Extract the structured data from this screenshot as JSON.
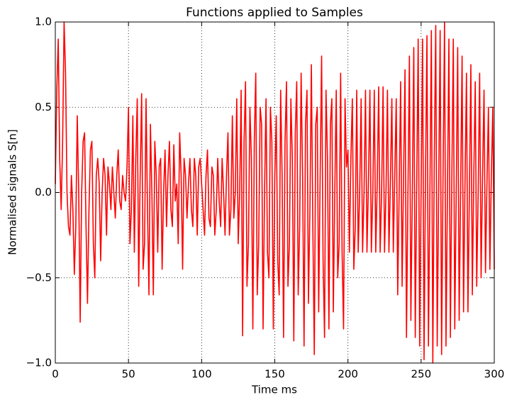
{
  "chart_data": {
    "type": "line",
    "title": "Functions applied to Samples",
    "xlabel": "Time ms",
    "ylabel": "Normalised signals S[n]",
    "x": [
      0,
      1,
      2,
      3,
      4,
      5,
      6,
      7,
      8,
      9,
      10,
      11,
      12,
      13,
      14,
      15,
      16,
      17,
      18,
      19,
      20,
      21,
      22,
      23,
      24,
      25,
      26,
      27,
      28,
      29,
      30,
      31,
      32,
      33,
      34,
      35,
      36,
      37,
      38,
      39,
      40,
      41,
      42,
      43,
      44,
      45,
      46,
      47,
      48,
      49,
      50,
      51,
      52,
      53,
      54,
      55,
      56,
      57,
      58,
      59,
      60,
      61,
      62,
      63,
      64,
      65,
      66,
      67,
      68,
      69,
      70,
      71,
      72,
      73,
      74,
      75,
      76,
      77,
      78,
      79,
      80,
      81,
      82,
      83,
      84,
      85,
      86,
      87,
      88,
      89,
      90,
      91,
      92,
      93,
      94,
      95,
      96,
      97,
      98,
      99,
      100,
      101,
      102,
      103,
      104,
      105,
      106,
      107,
      108,
      109,
      110,
      111,
      112,
      113,
      114,
      115,
      116,
      117,
      118,
      119,
      120,
      121,
      122,
      123,
      124,
      125,
      126,
      127,
      128,
      129,
      130,
      131,
      132,
      133,
      134,
      135,
      136,
      137,
      138,
      139,
      140,
      141,
      142,
      143,
      144,
      145,
      146,
      147,
      148,
      149,
      150,
      151,
      152,
      153,
      154,
      155,
      156,
      157,
      158,
      159,
      160,
      161,
      162,
      163,
      164,
      165,
      166,
      167,
      168,
      169,
      170,
      171,
      172,
      173,
      174,
      175,
      176,
      177,
      178,
      179,
      180,
      181,
      182,
      183,
      184,
      185,
      186,
      187,
      188,
      189,
      190,
      191,
      192,
      193,
      194,
      195,
      196,
      197,
      198,
      199,
      200,
      201,
      202,
      203,
      204,
      205,
      206,
      207,
      208,
      209,
      210,
      211,
      212,
      213,
      214,
      215,
      216,
      217,
      218,
      219,
      220,
      221,
      222,
      223,
      224,
      225,
      226,
      227,
      228,
      229,
      230,
      231,
      232,
      233,
      234,
      235,
      236,
      237,
      238,
      239,
      240,
      241,
      242,
      243,
      244,
      245,
      246,
      247,
      248,
      249,
      250,
      251,
      252,
      253,
      254,
      255,
      256,
      257,
      258,
      259,
      260,
      261,
      262,
      263,
      264,
      265,
      266,
      267,
      268,
      269,
      270,
      271,
      272,
      273,
      274,
      275,
      276,
      277,
      278,
      279,
      280,
      281,
      282,
      283,
      284,
      285,
      286,
      287,
      288,
      289,
      290,
      291,
      292,
      293,
      294,
      295,
      296,
      297,
      298,
      299,
      300
    ],
    "values": [
      0.05,
      0.6,
      0.9,
      0.2,
      -0.1,
      0.3,
      1.0,
      0.7,
      0.0,
      -0.2,
      -0.25,
      0.1,
      -0.1,
      -0.48,
      -0.2,
      0.45,
      0.0,
      -0.76,
      0.0,
      0.3,
      0.35,
      -0.2,
      -0.65,
      -0.1,
      0.25,
      0.3,
      -0.3,
      -0.5,
      0.1,
      0.2,
      0.05,
      -0.4,
      0.0,
      0.2,
      0.1,
      -0.25,
      0.15,
      0.05,
      -0.1,
      0.15,
      0.0,
      -0.15,
      0.1,
      0.25,
      -0.05,
      -0.1,
      0.1,
      0.0,
      -0.05,
      0.15,
      0.5,
      -0.3,
      -0.1,
      0.45,
      -0.35,
      0.2,
      0.55,
      -0.55,
      0.1,
      0.58,
      -0.45,
      -0.3,
      0.55,
      -0.1,
      -0.6,
      0.4,
      0.0,
      -0.6,
      0.3,
      0.1,
      -0.35,
      0.15,
      0.2,
      -0.45,
      0.0,
      0.25,
      -0.2,
      0.1,
      0.3,
      -0.1,
      -0.2,
      0.28,
      -0.05,
      0.05,
      -0.3,
      0.35,
      0.1,
      -0.45,
      0.2,
      0.1,
      -0.15,
      0.05,
      0.2,
      -0.1,
      -0.2,
      0.2,
      0.1,
      -0.25,
      0.15,
      0.2,
      0.05,
      -0.1,
      -0.25,
      0.1,
      0.25,
      -0.15,
      -0.2,
      0.15,
      0.1,
      -0.25,
      -0.1,
      0.2,
      -0.05,
      -0.2,
      0.2,
      0.0,
      -0.25,
      0.1,
      0.35,
      -0.25,
      -0.1,
      0.45,
      -0.15,
      0.0,
      0.55,
      -0.3,
      0.0,
      0.6,
      -0.84,
      0.3,
      0.65,
      -0.55,
      -0.3,
      0.5,
      0.2,
      -0.8,
      0.3,
      0.7,
      -0.6,
      -0.3,
      0.5,
      0.4,
      -0.8,
      0.0,
      0.55,
      -0.35,
      -0.5,
      0.5,
      0.3,
      -0.8,
      0.1,
      0.45,
      -0.4,
      -0.6,
      0.6,
      0.1,
      -0.85,
      0.3,
      0.65,
      -0.55,
      -0.3,
      0.55,
      0.2,
      -0.87,
      0.35,
      0.65,
      -0.6,
      -0.2,
      0.7,
      0.1,
      -0.9,
      0.4,
      0.6,
      -0.65,
      -0.1,
      0.75,
      -0.2,
      -0.95,
      0.4,
      0.5,
      -0.7,
      0.1,
      0.8,
      -0.4,
      -0.85,
      0.6,
      0.2,
      -0.8,
      0.4,
      0.55,
      -0.7,
      0.0,
      0.6,
      -0.5,
      -0.3,
      0.7,
      -0.35,
      -0.8,
      0.55,
      0.15,
      0.25,
      -0.35,
      0.2,
      0.55,
      -0.45,
      -0.2,
      0.6,
      -0.35,
      0.0,
      0.55,
      -0.35,
      0.0,
      0.6,
      -0.35,
      0.05,
      0.6,
      -0.35,
      0.0,
      0.6,
      -0.35,
      0.05,
      0.62,
      -0.35,
      0.0,
      0.62,
      -0.35,
      0.0,
      0.6,
      -0.35,
      0.05,
      0.55,
      -0.35,
      0.1,
      0.55,
      -0.6,
      0.0,
      0.65,
      -0.55,
      0.1,
      0.72,
      -0.85,
      0.0,
      0.8,
      -0.75,
      0.0,
      0.85,
      -0.85,
      0.05,
      0.9,
      -0.9,
      0.0,
      0.9,
      -0.98,
      0.1,
      0.92,
      -0.9,
      0.0,
      0.95,
      -1.0,
      0.2,
      0.98,
      -0.9,
      0.0,
      0.95,
      -0.95,
      0.1,
      1.0,
      -0.9,
      0.0,
      0.9,
      -0.85,
      0.1,
      0.9,
      -0.8,
      0.0,
      0.85,
      -0.75,
      0.0,
      0.8,
      -0.7,
      0.05,
      0.7,
      -0.7,
      0.0,
      0.75,
      -0.6,
      0.1,
      0.65,
      -0.55,
      0.0,
      0.7,
      -0.5,
      0.1,
      0.6,
      -0.47,
      0.05,
      0.5,
      -0.45,
      0.1,
      0.5,
      -0.45
    ],
    "color": "#ff0000",
    "xlim": [
      0,
      300
    ],
    "xticks": [
      0,
      50,
      100,
      150,
      200,
      250,
      300
    ],
    "ylim": [
      -1,
      1
    ],
    "yticks": [
      {
        "value": -1,
        "label": "−1.0"
      },
      {
        "value": -0.5,
        "label": "−0.5"
      },
      {
        "value": 0,
        "label": "0.0"
      },
      {
        "value": 0.5,
        "label": "0.5"
      },
      {
        "value": 1,
        "label": "1.0"
      }
    ],
    "grid": true
  }
}
